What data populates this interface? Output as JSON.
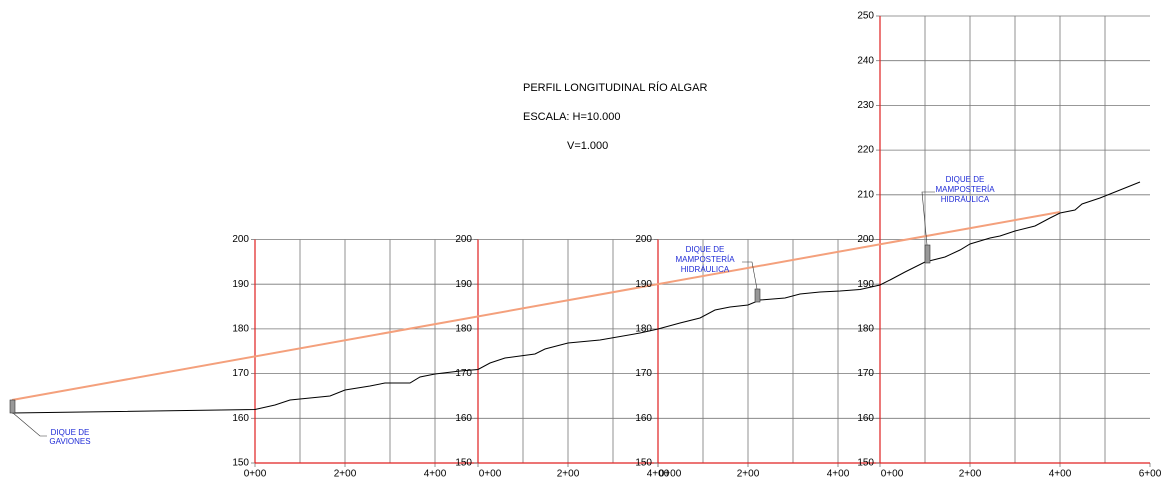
{
  "title": "PERFIL LONGITUDINAL RÍO ALGAR",
  "scale_h": "ESCALA: H=10.000",
  "scale_v": "V=1.000",
  "panels": [
    {
      "y_labels": [
        "150",
        "160",
        "170",
        "180",
        "190",
        "200"
      ],
      "x_labels": [
        "0+00",
        "2+00",
        "4+00"
      ]
    },
    {
      "y_labels": [
        "150",
        "160",
        "170",
        "180",
        "190",
        "200"
      ],
      "x_labels": [
        "0+00",
        "2+00",
        "4+00"
      ]
    },
    {
      "y_labels": [
        "150",
        "160",
        "170",
        "180",
        "190",
        "200"
      ],
      "x_labels": [
        "0+00",
        "2+00",
        "4+00"
      ]
    },
    {
      "y_labels": [
        "150",
        "160",
        "170",
        "180",
        "190",
        "200",
        "210",
        "220",
        "230",
        "240",
        "250"
      ],
      "x_labels": [
        "0+00",
        "2+00",
        "4+00",
        "6+00"
      ]
    }
  ],
  "annotations": [
    {
      "lines": [
        "DIQUE DE",
        "GAVIONES"
      ]
    },
    {
      "lines": [
        "DIQUE DE",
        "MAMPOSTERÍA",
        "HIDRÁULICA"
      ]
    },
    {
      "lines": [
        "DIQUE DE",
        "MAMPOSTERÍA",
        "HIDRÁULICA"
      ]
    }
  ]
}
